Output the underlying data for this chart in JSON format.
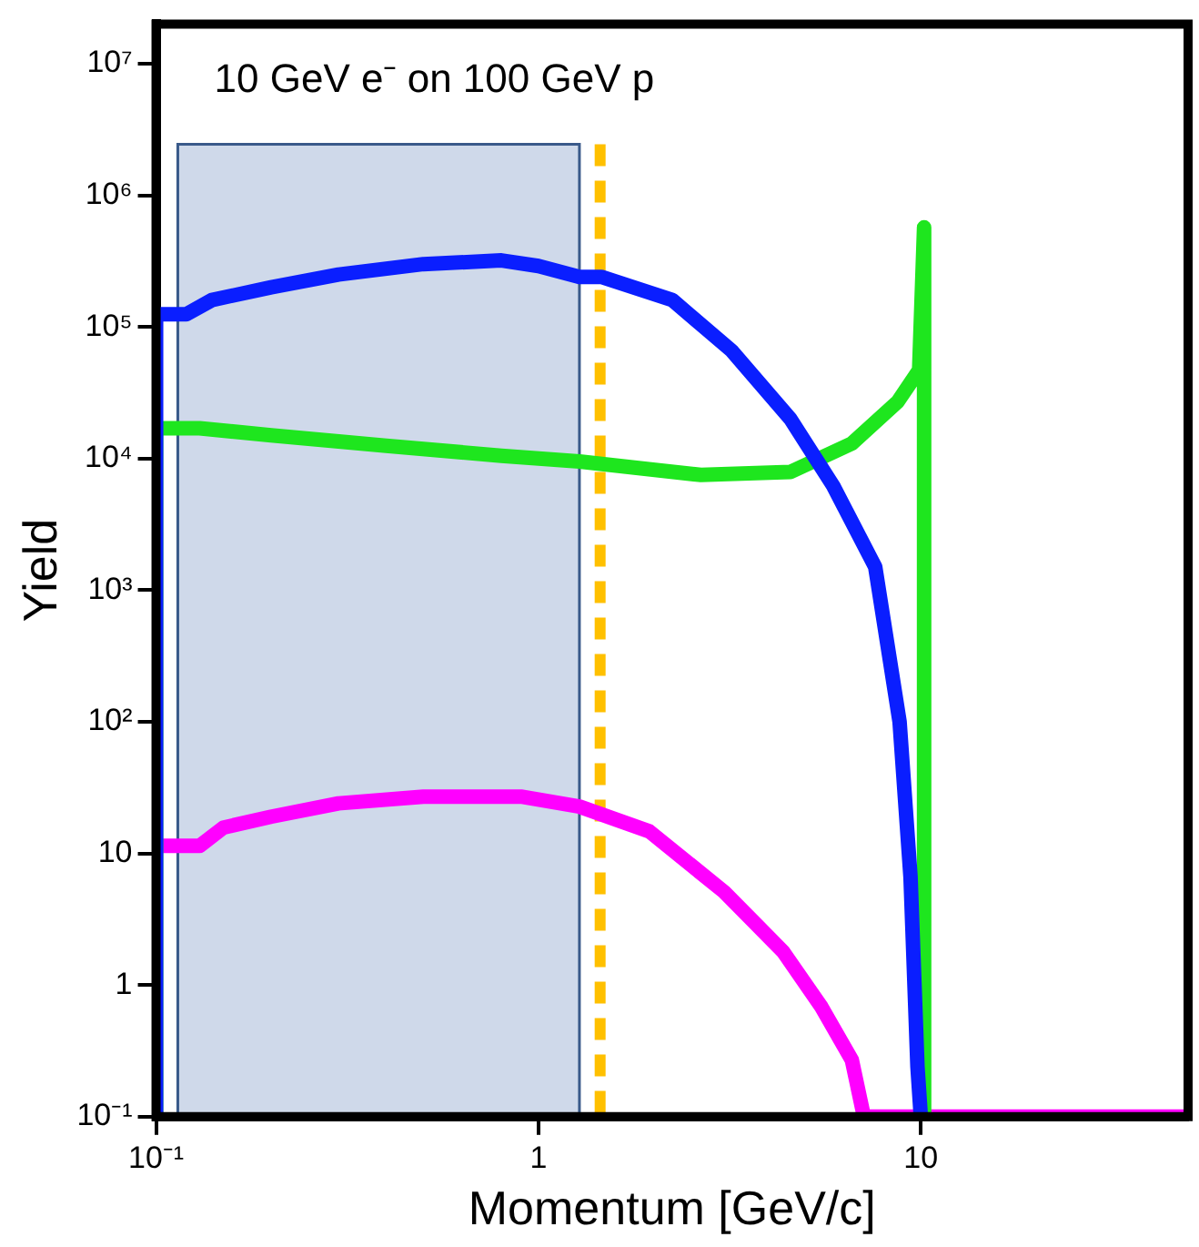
{
  "chart_data": {
    "type": "line",
    "xlabel": "Momentum [GeV/c]",
    "ylabel": "Yield",
    "annotations": [
      "10 GeV e⁻ on 100 GeV p"
    ],
    "log": "xy",
    "grid": false,
    "legend": false,
    "marker": "none",
    "line_style": "solid",
    "xlim": [
      0.1,
      50
    ],
    "xticks": [
      {
        "value": 0.1,
        "label": "10⁻¹"
      },
      1,
      10
    ],
    "ylim": [
      0.1,
      20000000
    ],
    "yticks": [
      {
        "value": 0.1,
        "label": "10⁻¹"
      },
      1,
      10,
      {
        "value": 100,
        "label": "10²"
      },
      {
        "value": 1000,
        "label": "10³"
      },
      {
        "value": 10000,
        "label": "10⁴"
      },
      {
        "value": 100000,
        "label": "10⁵"
      },
      {
        "value": 1000000,
        "label": "10⁶"
      },
      {
        "value": 10000000,
        "label": "10⁷"
      }
    ],
    "bands": [
      {
        "axis": "x",
        "from": 0.114,
        "to": 1.28,
        "color": "#cfd9ea"
      }
    ],
    "ref_lines": [
      {
        "axis": "x",
        "value": 1.45,
        "color": "#ffc000",
        "line_style": "dashed"
      }
    ],
    "series": [
      {
        "color": "#0a1eff",
        "x": [
          0.1,
          0.1,
          0.12,
          0.14,
          0.2,
          0.3,
          0.5,
          0.8,
          1.0,
          1.28,
          1.46,
          2.24,
          3.2,
          4.56,
          5.9,
          7.6,
          8.8,
          9.4,
          9.8,
          10
        ],
        "values": [
          0.1,
          125000,
          125000,
          160000,
          200000,
          250000,
          300000,
          320000,
          290000,
          240000,
          240000,
          160000,
          66000,
          20000,
          6200,
          1500,
          100,
          6.6,
          0.24,
          0.1
        ]
      },
      {
        "color": "#1ee61e",
        "x": [
          0.1,
          0.1,
          0.13,
          0.2,
          0.4,
          0.8,
          1.28,
          2.66,
          4.56,
          6.6,
          8.7,
          9.9,
          10.2,
          10.2
        ],
        "values": [
          0.1,
          17000,
          17000,
          15000,
          12500,
          10500,
          9500,
          7500,
          7900,
          13000,
          27000,
          47000,
          570000,
          0.1
        ]
      },
      {
        "color": "#ff00ff",
        "x": [
          0.1,
          0.13,
          0.15,
          0.2,
          0.3,
          0.5,
          0.9,
          1.28,
          1.95,
          3.06,
          4.36,
          5.5,
          6.6,
          7.1,
          50
        ],
        "values": [
          11.4,
          11.4,
          15.7,
          19,
          24,
          27,
          27,
          22.7,
          14.7,
          5.1,
          1.8,
          0.68,
          0.27,
          0.1,
          0.1
        ]
      }
    ]
  }
}
